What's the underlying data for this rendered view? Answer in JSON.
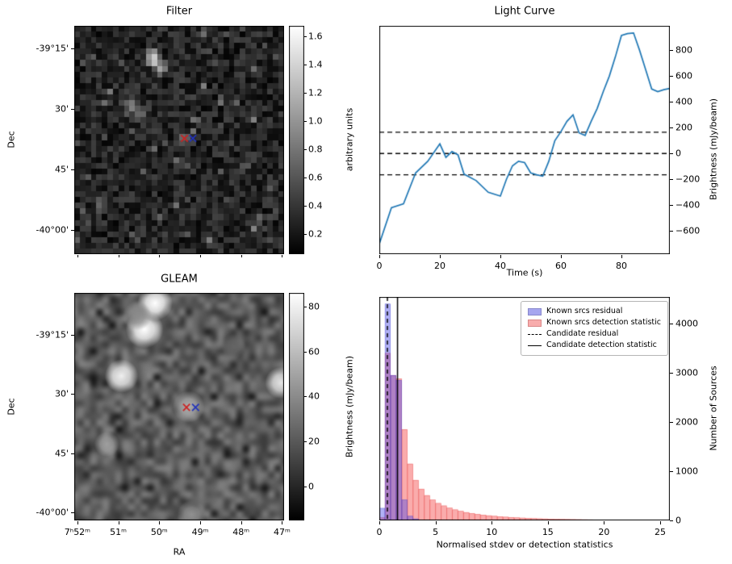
{
  "figure_bg": "#ffffff",
  "chart_data": [
    {
      "id": "filter",
      "type": "heatmap",
      "title": "Filter",
      "ylabel": "Dec",
      "colorbar": {
        "label": "arbitrary units",
        "clim": [
          0.055,
          1.675
        ],
        "ticks": [
          {
            "v": 0.2,
            "label": "0.2"
          },
          {
            "v": 0.4,
            "label": "0.4"
          },
          {
            "v": 0.6,
            "label": "0.6"
          },
          {
            "v": 0.8,
            "label": "0.8"
          },
          {
            "v": 1.0,
            "label": "1.0"
          },
          {
            "v": 1.2,
            "label": "1.2"
          },
          {
            "v": 1.4,
            "label": "1.4"
          },
          {
            "v": 1.6,
            "label": "1.6"
          }
        ]
      },
      "ytick_labels": [
        {
          "pos": 0.1,
          "label": "-39°15'"
        },
        {
          "pos": 0.365,
          "label": "30'"
        },
        {
          "pos": 0.63,
          "label": "45'"
        },
        {
          "pos": 0.895,
          "label": "-40°00'"
        }
      ],
      "noise": {
        "seed": 11,
        "cols": 38,
        "rows": 40,
        "base": 0.08,
        "spread": 0.4
      },
      "bright_spots": [
        {
          "x": 0.375,
          "y": 0.14,
          "amp": 1.15,
          "sigma": 0.022
        },
        {
          "x": 0.41,
          "y": 0.185,
          "amp": 0.85,
          "sigma": 0.02
        },
        {
          "x": 0.27,
          "y": 0.36,
          "amp": 0.6,
          "sigma": 0.022
        },
        {
          "x": 0.315,
          "y": 0.395,
          "amp": 0.45,
          "sigma": 0.02
        },
        {
          "x": 0.53,
          "y": 0.49,
          "amp": 0.45,
          "sigma": 0.018
        },
        {
          "x": 0.62,
          "y": 0.04,
          "amp": 0.4,
          "sigma": 0.02
        },
        {
          "x": 0.13,
          "y": 0.775,
          "amp": 0.35,
          "sigma": 0.02
        },
        {
          "x": 0.82,
          "y": 0.6,
          "amp": 0.3,
          "sigma": 0.02
        }
      ],
      "markers": [
        {
          "shape": "x",
          "color": "#cc2222",
          "x": 0.525,
          "y": 0.493
        },
        {
          "shape": "x",
          "color": "#2233bb",
          "x": 0.565,
          "y": 0.493
        }
      ]
    },
    {
      "id": "light_curve",
      "type": "line",
      "title": "Light Curve",
      "xlabel": "Time (s)",
      "ylabel": "Brightness (mJy/beam)",
      "line_color": "#1f77b4",
      "xlim": [
        0,
        96
      ],
      "ylim": [
        -780,
        990
      ],
      "xticks": [
        0,
        20,
        40,
        60,
        80
      ],
      "yticks": [
        -600,
        -400,
        -200,
        0,
        200,
        400,
        600,
        800
      ],
      "threshold_lines": [
        165,
        0,
        -165
      ],
      "x": [
        0,
        4,
        8,
        12,
        16,
        20,
        22,
        24,
        26,
        28,
        32,
        36,
        40,
        42,
        44,
        46,
        48,
        50,
        52,
        54,
        56,
        58,
        60,
        62,
        64,
        66,
        68,
        70,
        72,
        74,
        76,
        78,
        80,
        82,
        84,
        86,
        88,
        90,
        92,
        94,
        96
      ],
      "y": [
        -700,
        -420,
        -390,
        -150,
        -60,
        75,
        -30,
        15,
        -10,
        -160,
        -210,
        -300,
        -330,
        -200,
        -95,
        -60,
        -70,
        -150,
        -165,
        -175,
        -60,
        100,
        170,
        250,
        300,
        160,
        140,
        250,
        350,
        480,
        600,
        750,
        915,
        930,
        935,
        800,
        650,
        500,
        480,
        495,
        505
      ]
    },
    {
      "id": "gleam",
      "type": "heatmap",
      "title": "GLEAM",
      "xlabel": "RA",
      "ylabel": "Dec",
      "colorbar": {
        "label": "Brightness (mJy/beam)",
        "clim": [
          -15,
          86
        ],
        "ticks": [
          {
            "v": 0,
            "label": "0"
          },
          {
            "v": 20,
            "label": "20"
          },
          {
            "v": 40,
            "label": "40"
          },
          {
            "v": 60,
            "label": "60"
          },
          {
            "v": 80,
            "label": "80"
          }
        ]
      },
      "ytick_labels": [
        {
          "pos": 0.185,
          "label": "-39°15'"
        },
        {
          "pos": 0.445,
          "label": "30'"
        },
        {
          "pos": 0.705,
          "label": "45'"
        },
        {
          "pos": 0.965,
          "label": "-40°00'"
        }
      ],
      "xtick_labels": [
        {
          "pos": 0.015,
          "label": "7ʰ52ᵐ"
        },
        {
          "pos": 0.21,
          "label": "51ᵐ"
        },
        {
          "pos": 0.405,
          "label": "50ᵐ"
        },
        {
          "pos": 0.6,
          "label": "49ᵐ"
        },
        {
          "pos": 0.795,
          "label": "48ᵐ"
        },
        {
          "pos": 0.99,
          "label": "47ᵐ"
        }
      ],
      "noise": {
        "seed": 29,
        "cols": 34,
        "rows": 36,
        "base": 8,
        "spread": 28
      },
      "blobs": [
        {
          "x": 0.385,
          "y": 0.045,
          "amp": 88,
          "r": 0.042
        },
        {
          "x": 0.335,
          "y": 0.16,
          "amp": 90,
          "r": 0.045
        },
        {
          "x": 0.3,
          "y": 0.1,
          "amp": 40,
          "r": 0.035
        },
        {
          "x": 0.225,
          "y": 0.365,
          "amp": 80,
          "r": 0.04
        },
        {
          "x": 0.985,
          "y": 0.395,
          "amp": 75,
          "r": 0.038
        },
        {
          "x": 0.545,
          "y": 0.5,
          "amp": 55,
          "r": 0.038
        },
        {
          "x": 0.155,
          "y": 0.665,
          "amp": 48,
          "r": 0.03
        },
        {
          "x": 0.56,
          "y": 0.975,
          "amp": 42,
          "r": 0.035
        },
        {
          "x": 0.76,
          "y": 0.235,
          "amp": 25,
          "r": 0.03
        }
      ],
      "markers": [
        {
          "shape": "x",
          "color": "#cc2222",
          "x": 0.535,
          "y": 0.503
        },
        {
          "shape": "x",
          "color": "#2233bb",
          "x": 0.578,
          "y": 0.503
        }
      ]
    },
    {
      "id": "histogram",
      "type": "bar",
      "xlabel": "Normalised stdev or detection statistics",
      "ylabel": "Number of Sources",
      "xlim": [
        0,
        25.86
      ],
      "ylim": [
        0,
        4540
      ],
      "xticks": [
        0,
        5,
        10,
        15,
        20,
        25
      ],
      "yticks": [
        0,
        1000,
        2000,
        3000,
        4000
      ],
      "bin_start": 0,
      "bin_width": 0.5,
      "series": [
        {
          "name": "Known srcs residual",
          "fill": "rgba(70,70,230,0.42)",
          "edge": "rgba(60,60,200,0.55)",
          "values": [
            250,
            4400,
            2950,
            2850,
            420,
            90,
            35,
            15,
            8,
            4
          ]
        },
        {
          "name": "Known srcs detection statistic",
          "fill": "rgba(245,70,70,0.45)",
          "edge": "rgba(225,60,60,0.55)",
          "values": [
            60,
            3400,
            2950,
            2880,
            1850,
            1150,
            820,
            640,
            510,
            420,
            350,
            300,
            255,
            220,
            190,
            165,
            145,
            128,
            112,
            100,
            90,
            80,
            72,
            65,
            58,
            52,
            47,
            42,
            38,
            35,
            32,
            29,
            26,
            24,
            22,
            20,
            18,
            17,
            15,
            14,
            13,
            12,
            11,
            10,
            9,
            9,
            8,
            8,
            7,
            7,
            6,
            6
          ]
        }
      ],
      "vlines": [
        {
          "name": "Candidate residual",
          "style": "dashed",
          "x": 0.72
        },
        {
          "name": "Candidate detection statistic",
          "style": "solid",
          "x": 1.62
        }
      ]
    }
  ]
}
